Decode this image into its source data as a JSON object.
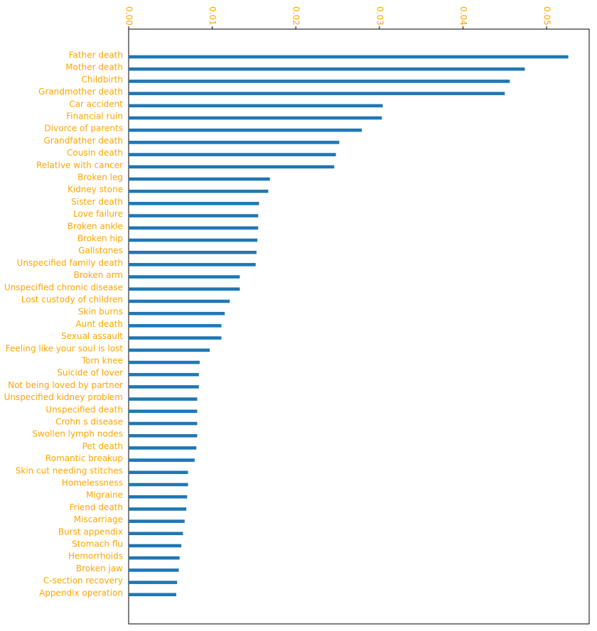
{
  "chart_data": {
    "type": "barh",
    "categories": [
      "Father death",
      "Mother death",
      "Childbirth",
      "Grandmother death",
      "Car accident",
      "Financial ruin",
      "Divorce of parents",
      "Grandfather death",
      "Cousin death",
      "Relative with cancer",
      "Broken leg",
      "Kidney stone",
      "Sister death",
      "Love failure",
      "Broken ankle",
      "Broken hip",
      "Gallstones",
      "Unspecified family death",
      "Broken arm",
      "Unspecified chronic disease",
      "Lost custody of children",
      "Skin burns",
      "Aunt death",
      "Sexual assault",
      "Feeling like your soul is lost",
      "Torn knee",
      "Suicide of lover",
      "Not being loved by partner",
      "Unspecified kidney problem",
      "Unspecified death",
      "Crohn s disease",
      "Swollen lymph nodes",
      "Pet death",
      "Romantic breakup",
      "Skin cut needing stitches",
      "Homelessness",
      "Migraine",
      "Friend death",
      "Miscarriage",
      "Burst appendix",
      "Stomach flu",
      "Hemorrhoids",
      "Broken jaw",
      "C-section recovery",
      "Appendix operation"
    ],
    "values": [
      0.0526,
      0.0474,
      0.0456,
      0.045,
      0.0304,
      0.0303,
      0.0279,
      0.0252,
      0.0248,
      0.0246,
      0.0169,
      0.0167,
      0.0156,
      0.0155,
      0.0155,
      0.0154,
      0.0153,
      0.0152,
      0.0133,
      0.0133,
      0.0121,
      0.0115,
      0.0111,
      0.0111,
      0.0097,
      0.0085,
      0.0084,
      0.0084,
      0.0082,
      0.0082,
      0.0082,
      0.0082,
      0.0081,
      0.0079,
      0.0071,
      0.0071,
      0.007,
      0.0069,
      0.0067,
      0.0065,
      0.0063,
      0.0061,
      0.006,
      0.0058,
      0.0057
    ],
    "color": "#1f77b4",
    "xlim": [
      0,
      0.0551
    ],
    "xticks": [
      {
        "value": 0,
        "label": "0.00"
      },
      {
        "value": 0.01,
        "label": "0.01"
      },
      {
        "value": 0.02,
        "label": "0.02"
      },
      {
        "value": 0.03,
        "label": "0.03"
      },
      {
        "value": 0.04,
        "label": "0.04"
      },
      {
        "value": 0.05,
        "label": "0.05"
      }
    ]
  }
}
